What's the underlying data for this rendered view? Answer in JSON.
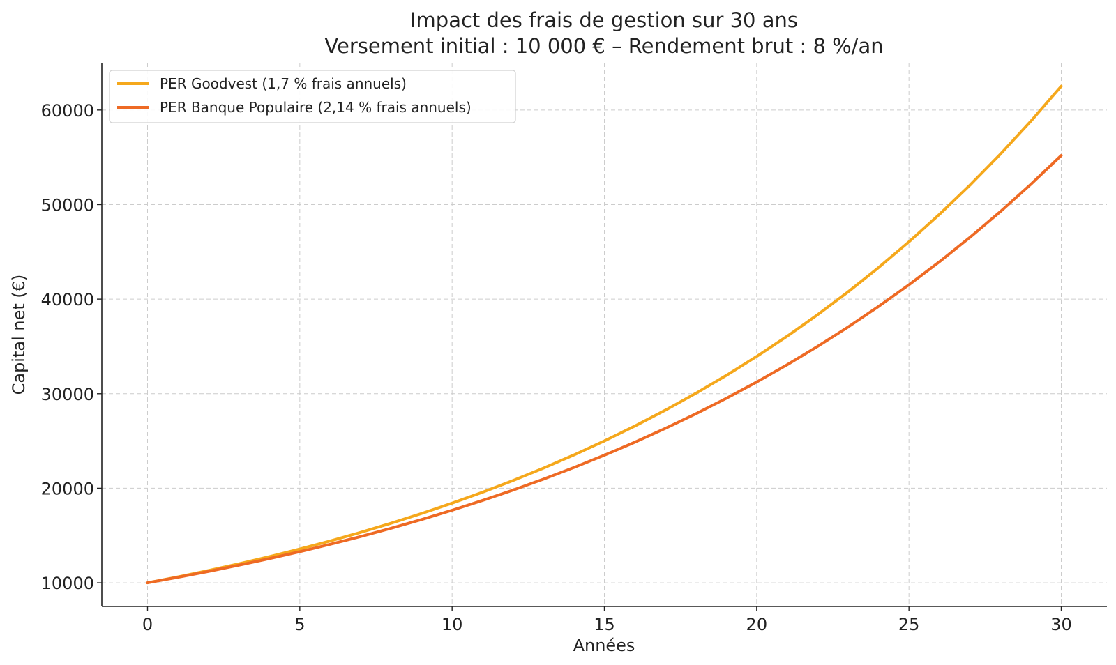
{
  "chart_data": {
    "type": "line",
    "title": "Impact des frais de gestion sur 30 ans",
    "subtitle": "Versement initial : 10 000 € – Rendement brut : 8 %/an",
    "xlabel": "Années",
    "ylabel": "Capital net (€)",
    "xlim": [
      -1.5,
      31.5
    ],
    "ylim": [
      7500,
      65000
    ],
    "x_ticks": [
      0,
      5,
      10,
      15,
      20,
      25,
      30
    ],
    "y_ticks": [
      10000,
      20000,
      30000,
      40000,
      50000,
      60000
    ],
    "x_tick_labels": [
      "0",
      "5",
      "10",
      "15",
      "20",
      "25",
      "30"
    ],
    "y_tick_labels": [
      "10000",
      "20000",
      "30000",
      "40000",
      "50000",
      "60000"
    ],
    "grid": true,
    "legend_position": "top-left",
    "x": [
      0,
      1,
      2,
      3,
      4,
      5,
      6,
      7,
      8,
      9,
      10,
      11,
      12,
      13,
      14,
      15,
      16,
      17,
      18,
      19,
      20,
      21,
      22,
      23,
      24,
      25,
      26,
      27,
      28,
      29,
      30
    ],
    "series": [
      {
        "name": "PER Goodvest (1,7 % frais annuels)",
        "color": "#f5a81c",
        "values": [
          10000,
          10630,
          11300,
          12012,
          12769,
          13573,
          14429,
          15338,
          16304,
          17331,
          18423,
          19584,
          20817,
          22129,
          23523,
          25005,
          26580,
          28255,
          30035,
          31927,
          33938,
          36077,
          38349,
          40765,
          43334,
          46064,
          48966,
          52050,
          55330,
          58816,
          62521
        ]
      },
      {
        "name": "PER Banque Populaire (2,14 % frais annuels)",
        "color": "#ee6a24",
        "values": [
          10000,
          10586,
          11206,
          11863,
          12558,
          13294,
          14073,
          14897,
          15770,
          16694,
          17673,
          18708,
          19804,
          20965,
          22193,
          23494,
          24870,
          26328,
          27870,
          29503,
          31232,
          33062,
          35000,
          37051,
          39222,
          41520,
          43953,
          46528,
          49255,
          52141,
          55196
        ]
      }
    ]
  }
}
